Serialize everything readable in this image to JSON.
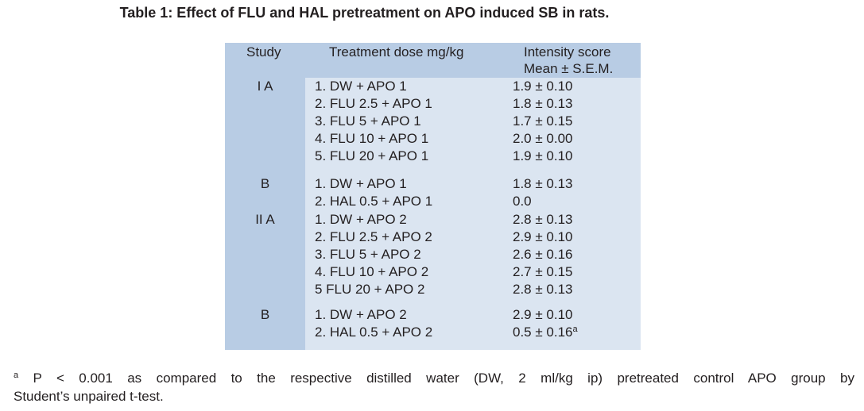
{
  "caption": "Table 1: Effect of FLU and HAL pretreatment on APO induced SB in rats.",
  "headers": {
    "study": "Study",
    "treatment": "Treatment dose mg/kg",
    "score_line1": "Intensity score",
    "score_line2": "Mean ± S.E.M."
  },
  "rows": [
    {
      "study": "I A",
      "treatment": "1. DW + APO 1",
      "score": "1.9 ± 0.10",
      "sup": ""
    },
    {
      "study": "",
      "treatment": "2. FLU 2.5 + APO 1",
      "score": "1.8 ± 0.13",
      "sup": ""
    },
    {
      "study": "",
      "treatment": "3. FLU 5 + APO 1",
      "score": "1.7 ± 0.15",
      "sup": ""
    },
    {
      "study": "",
      "treatment": "4. FLU 10 + APO 1",
      "score": "2.0 ± 0.00",
      "sup": ""
    },
    {
      "study": "",
      "treatment": "5. FLU 20 + APO 1",
      "score": "1.9 ± 0.10",
      "sup": ""
    },
    {
      "study": "B",
      "treatment": "1. DW + APO 1",
      "score": "1.8 ± 0.13",
      "sup": ""
    },
    {
      "study": "",
      "treatment": "2. HAL 0.5 + APO 1",
      "score": "0.0",
      "sup": ""
    },
    {
      "study": "II A",
      "treatment": "1. DW + APO 2",
      "score": "2.8 ± 0.13",
      "sup": ""
    },
    {
      "study": "",
      "treatment": "2. FLU 2.5 + APO 2",
      "score": "2.9 ± 0.10",
      "sup": ""
    },
    {
      "study": "",
      "treatment": "3. FLU 5 + APO 2",
      "score": "2.6 ± 0.16",
      "sup": ""
    },
    {
      "study": "",
      "treatment": "4. FLU 10 + APO 2",
      "score": "2.7 ± 0.15",
      "sup": ""
    },
    {
      "study": "",
      "treatment": "5 FLU 20 + APO 2",
      "score": "2.8 ± 0.13",
      "sup": ""
    },
    {
      "study": "B",
      "treatment": "1. DW + APO 2",
      "score": "2.9 ± 0.10",
      "sup": ""
    },
    {
      "study": "",
      "treatment": "2. HAL 0.5 + APO 2",
      "score": "0.5 ± 0.16",
      "sup": "a"
    }
  ],
  "footnote": {
    "marker": "a",
    "line1": "P < 0.001 as compared to the respective distilled water (DW, 2 ml/kg ip) pretreated control APO group by",
    "line2": "Student’s unpaired t-test."
  }
}
